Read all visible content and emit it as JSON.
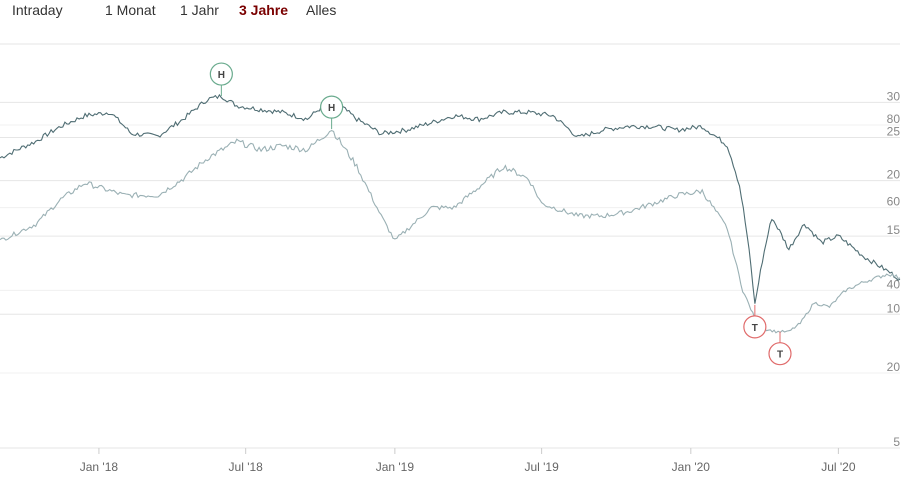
{
  "range_tabs": [
    {
      "label": "Intraday",
      "active": false
    },
    {
      "label": "1 Monat",
      "active": false
    },
    {
      "label": "1 Jahr",
      "active": false
    },
    {
      "label": "3 Jahre",
      "active": true
    },
    {
      "label": "Alles",
      "active": false
    }
  ],
  "colors": {
    "accent": "#7a0000",
    "series_primary": "#4f6d73",
    "series_secondary": "#9ab0b4",
    "flag_high": "#6aab8e",
    "flag_low": "#e06b6b",
    "grid": "#e6e6e6"
  },
  "chart_data": {
    "type": "line",
    "x_axis": {
      "ticks": [
        "Jan '18",
        "Jul '18",
        "Jan '19",
        "Jul '19",
        "Jan '20",
        "Jul '20"
      ],
      "range": [
        "2017-09-01",
        "2020-09-15"
      ]
    },
    "y_axis_right_primary": {
      "ticks": [
        5,
        10,
        15,
        20,
        25,
        30
      ],
      "range": [
        5,
        33
      ]
    },
    "y_axis_right_secondary": {
      "ticks": [
        20,
        40,
        60,
        80
      ],
      "range": [
        20,
        80
      ]
    },
    "grid": true,
    "series": [
      {
        "axis": "primary",
        "points": [
          [
            "2017-09-01",
            22.5
          ],
          [
            "2017-10-15",
            24.5
          ],
          [
            "2017-11-15",
            26.5
          ],
          [
            "2017-12-15",
            28.0
          ],
          [
            "2018-01-15",
            28.5
          ],
          [
            "2018-02-10",
            25.5
          ],
          [
            "2018-03-15",
            25.2
          ],
          [
            "2018-04-15",
            27.5
          ],
          [
            "2018-05-15",
            30.5
          ],
          [
            "2018-06-01",
            31.0
          ],
          [
            "2018-06-20",
            29.5
          ],
          [
            "2018-07-15",
            29.0
          ],
          [
            "2018-08-15",
            28.5
          ],
          [
            "2018-09-15",
            27.5
          ],
          [
            "2018-10-15",
            30.5
          ],
          [
            "2018-11-15",
            27.5
          ],
          [
            "2018-12-15",
            25.5
          ],
          [
            "2019-01-15",
            26.0
          ],
          [
            "2019-02-15",
            27.0
          ],
          [
            "2019-03-15",
            28.0
          ],
          [
            "2019-04-15",
            27.5
          ],
          [
            "2019-05-15",
            28.5
          ],
          [
            "2019-06-15",
            28.5
          ],
          [
            "2019-07-15",
            28.0
          ],
          [
            "2019-08-15",
            25.0
          ],
          [
            "2019-09-15",
            26.0
          ],
          [
            "2019-10-15",
            26.5
          ],
          [
            "2019-11-15",
            26.5
          ],
          [
            "2019-12-15",
            26.0
          ],
          [
            "2020-01-15",
            26.5
          ],
          [
            "2020-02-15",
            24.0
          ],
          [
            "2020-03-01",
            19.5
          ],
          [
            "2020-03-20",
            10.5
          ],
          [
            "2020-04-10",
            16.5
          ],
          [
            "2020-05-01",
            14.0
          ],
          [
            "2020-05-20",
            16.0
          ],
          [
            "2020-06-10",
            14.5
          ],
          [
            "2020-07-01",
            15.0
          ],
          [
            "2020-08-01",
            13.5
          ],
          [
            "2020-09-15",
            12.0
          ]
        ]
      },
      {
        "axis": "secondary",
        "points": [
          [
            "2017-09-01",
            52
          ],
          [
            "2017-10-15",
            56
          ],
          [
            "2017-11-15",
            62
          ],
          [
            "2017-12-15",
            66
          ],
          [
            "2018-02-01",
            63
          ],
          [
            "2018-03-15",
            63
          ],
          [
            "2018-04-15",
            67
          ],
          [
            "2018-05-15",
            72
          ],
          [
            "2018-06-20",
            76
          ],
          [
            "2018-07-20",
            74
          ],
          [
            "2018-08-15",
            75
          ],
          [
            "2018-09-15",
            74
          ],
          [
            "2018-10-15",
            79
          ],
          [
            "2018-11-15",
            70
          ],
          [
            "2018-12-15",
            58
          ],
          [
            "2019-01-01",
            52
          ],
          [
            "2019-02-15",
            60
          ],
          [
            "2019-03-15",
            60
          ],
          [
            "2019-04-15",
            65
          ],
          [
            "2019-05-15",
            70
          ],
          [
            "2019-06-15",
            67
          ],
          [
            "2019-07-01",
            61
          ],
          [
            "2019-08-15",
            58
          ],
          [
            "2019-09-15",
            58
          ],
          [
            "2019-10-15",
            59
          ],
          [
            "2019-11-15",
            61
          ],
          [
            "2019-12-15",
            63
          ],
          [
            "2020-01-15",
            64
          ],
          [
            "2020-02-15",
            55
          ],
          [
            "2020-03-05",
            40
          ],
          [
            "2020-03-25",
            31
          ],
          [
            "2020-04-15",
            30
          ],
          [
            "2020-05-01",
            30
          ],
          [
            "2020-05-15",
            32
          ],
          [
            "2020-06-01",
            37
          ],
          [
            "2020-06-20",
            36
          ],
          [
            "2020-07-10",
            40
          ],
          [
            "2020-08-01",
            42
          ],
          [
            "2020-09-01",
            44
          ],
          [
            "2020-09-15",
            43
          ]
        ]
      }
    ],
    "flags": [
      {
        "text": "H",
        "kind": "high",
        "date": "2018-06-01",
        "series": 0
      },
      {
        "text": "H",
        "kind": "high",
        "date": "2018-10-15",
        "series": 1
      },
      {
        "text": "T",
        "kind": "low",
        "date": "2020-03-20",
        "series": 0
      },
      {
        "text": "T",
        "kind": "low",
        "date": "2020-04-20",
        "series": 1
      }
    ]
  }
}
